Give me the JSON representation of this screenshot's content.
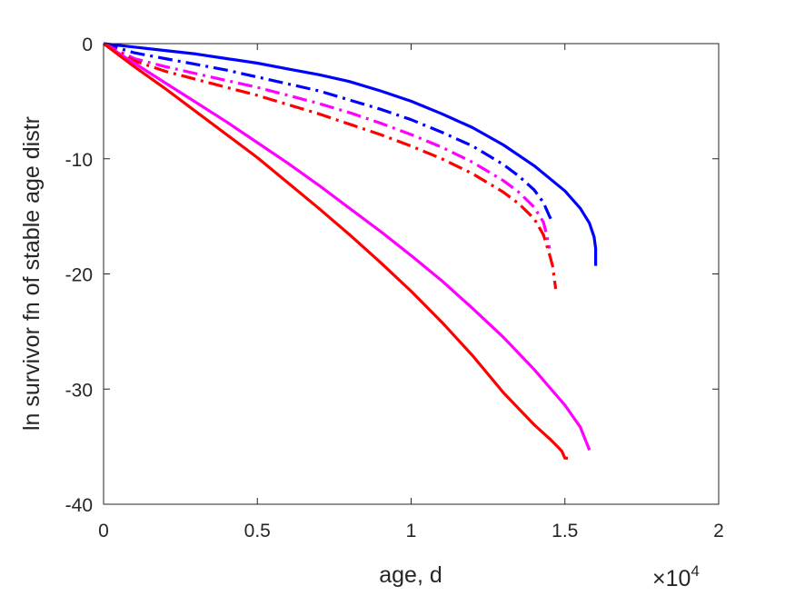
{
  "chart_data": {
    "type": "line",
    "xlabel": "age, d",
    "ylabel": "ln survivor fn of stable age distr",
    "x_exponent_mult": "×10",
    "x_exponent_power": "4",
    "xlim": [
      0,
      2
    ],
    "ylim": [
      -40,
      0
    ],
    "xticks": [
      0,
      0.5,
      1,
      1.5,
      2
    ],
    "xtick_labels": [
      "0",
      "0.5",
      "1",
      "1.5",
      "2"
    ],
    "yticks": [
      0,
      -10,
      -20,
      -30,
      -40
    ],
    "ytick_labels": [
      "0",
      "-10",
      "-20",
      "-30",
      "-40"
    ],
    "grid": false,
    "series": [
      {
        "color": "#0000ff",
        "style": "solid",
        "x": [
          0,
          0.1,
          0.2,
          0.3,
          0.4,
          0.5,
          0.6,
          0.7,
          0.8,
          0.9,
          1.0,
          1.1,
          1.2,
          1.3,
          1.4,
          1.5,
          1.55,
          1.58,
          1.595,
          1.6,
          1.6
        ],
        "y": [
          0,
          -0.3,
          -0.6,
          -0.9,
          -1.3,
          -1.7,
          -2.2,
          -2.7,
          -3.3,
          -4.1,
          -5.0,
          -6.1,
          -7.3,
          -8.8,
          -10.6,
          -12.8,
          -14.3,
          -15.6,
          -16.8,
          -17.8,
          -19.3
        ]
      },
      {
        "color": "#0000ff",
        "style": "dashdot",
        "x": [
          0,
          0.1,
          0.2,
          0.3,
          0.4,
          0.5,
          0.6,
          0.7,
          0.8,
          0.9,
          1.0,
          1.1,
          1.2,
          1.3,
          1.35,
          1.4,
          1.43,
          1.45,
          1.46
        ],
        "y": [
          0,
          -0.8,
          -1.3,
          -1.8,
          -2.3,
          -2.9,
          -3.5,
          -4.1,
          -4.9,
          -5.7,
          -6.6,
          -7.7,
          -8.9,
          -10.5,
          -11.5,
          -12.7,
          -13.8,
          -15.0,
          -15.5
        ]
      },
      {
        "color": "#ff00ff",
        "style": "dashdot",
        "x": [
          0,
          0.1,
          0.2,
          0.3,
          0.4,
          0.5,
          0.6,
          0.7,
          0.8,
          0.9,
          1.0,
          1.1,
          1.2,
          1.3,
          1.35,
          1.4,
          1.43,
          1.44,
          1.45
        ],
        "y": [
          0,
          -1.3,
          -2.0,
          -2.6,
          -3.2,
          -3.8,
          -4.5,
          -5.2,
          -6.0,
          -6.9,
          -7.9,
          -9.0,
          -10.3,
          -11.9,
          -12.9,
          -14.2,
          -15.5,
          -16.5,
          -17.8
        ]
      },
      {
        "color": "#ff0000",
        "style": "dashdot",
        "x": [
          0,
          0.1,
          0.2,
          0.3,
          0.4,
          0.5,
          0.6,
          0.7,
          0.8,
          0.9,
          1.0,
          1.1,
          1.2,
          1.3,
          1.35,
          1.4,
          1.43,
          1.45,
          1.46,
          1.47
        ],
        "y": [
          0,
          -1.5,
          -2.4,
          -3.1,
          -3.8,
          -4.5,
          -5.3,
          -6.1,
          -7.0,
          -7.9,
          -8.9,
          -10.0,
          -11.3,
          -12.9,
          -13.9,
          -15.2,
          -16.6,
          -18.3,
          -19.3,
          -21.3
        ]
      },
      {
        "color": "#ff00ff",
        "style": "solid",
        "x": [
          0,
          0.1,
          0.2,
          0.3,
          0.4,
          0.5,
          0.6,
          0.7,
          0.8,
          0.9,
          1.0,
          1.1,
          1.2,
          1.3,
          1.4,
          1.5,
          1.55,
          1.58
        ],
        "y": [
          0,
          -1.7,
          -3.4,
          -5.1,
          -6.8,
          -8.6,
          -10.4,
          -12.3,
          -14.3,
          -16.3,
          -18.4,
          -20.6,
          -23.0,
          -25.5,
          -28.3,
          -31.4,
          -33.3,
          -35.3
        ]
      },
      {
        "color": "#ff0000",
        "style": "solid",
        "x": [
          0,
          0.1,
          0.2,
          0.3,
          0.4,
          0.5,
          0.6,
          0.7,
          0.8,
          0.9,
          1.0,
          1.1,
          1.2,
          1.3,
          1.4,
          1.45,
          1.48,
          1.49,
          1.5,
          1.51
        ],
        "y": [
          0,
          -2.0,
          -3.9,
          -5.9,
          -7.9,
          -9.9,
          -12.1,
          -14.3,
          -16.6,
          -19.0,
          -21.5,
          -24.2,
          -27.1,
          -30.3,
          -33.1,
          -34.3,
          -35.1,
          -35.4,
          -36.0,
          -36.0
        ]
      }
    ]
  }
}
